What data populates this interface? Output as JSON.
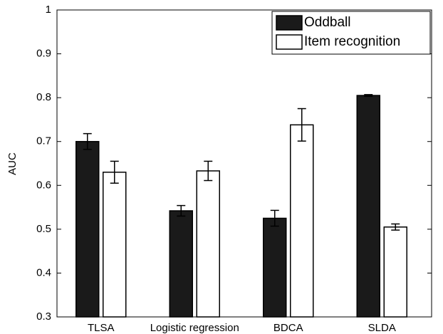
{
  "chart_data": {
    "type": "bar",
    "y_label": "AUC",
    "categories": [
      "TLSA",
      "Logistic regression",
      "BDCA",
      "SLDA"
    ],
    "series": [
      {
        "name": "Oddball",
        "color": "#1a1a1a",
        "values": [
          0.7,
          0.542,
          0.525,
          0.805
        ],
        "errors": [
          0.018,
          0.012,
          0.018,
          0.002
        ]
      },
      {
        "name": "Item recognition",
        "color": "#ffffff",
        "values": [
          0.63,
          0.633,
          0.738,
          0.505
        ],
        "errors": [
          0.025,
          0.022,
          0.037,
          0.007
        ]
      }
    ],
    "ylim": [
      0.3,
      1
    ],
    "yticks": [
      0.3,
      0.4,
      0.5,
      0.6,
      0.7,
      0.8,
      0.9,
      1
    ],
    "legend": "top-right"
  }
}
